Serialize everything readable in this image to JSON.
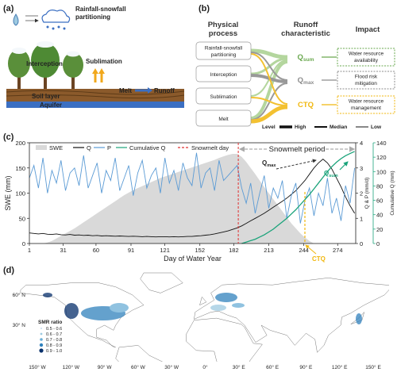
{
  "panel_a": {
    "label": "(a)",
    "partitioning": [
      "Rainfall-snowfall",
      "partitioning"
    ],
    "sublimation": "Sublimation",
    "interception": "Interception",
    "melt": "Melt",
    "runoff": "Runoff",
    "soil": "Soil layer",
    "aquifer": "Aquifer"
  },
  "panel_b": {
    "label": "(b)",
    "headers": [
      [
        "Physical",
        "process"
      ],
      [
        "Runoff",
        "characteristic"
      ],
      [
        "Impact"
      ]
    ],
    "processes": [
      [
        "Rainfall-snowfall",
        "partitioning"
      ],
      [
        "Interception"
      ],
      [
        "Sublimation"
      ],
      [
        "Melt"
      ]
    ],
    "characteristics": [
      {
        "base": "Q",
        "sub": "sum",
        "color": "#6aa84f"
      },
      {
        "base": "Q",
        "sub": "max",
        "color": "#8c8c8c"
      },
      {
        "base": "CTQ",
        "color": "#f1b70e"
      }
    ],
    "impacts": [
      [
        "Water resource",
        "availability"
      ],
      [
        "Flood risk",
        "mitigation"
      ],
      [
        "Water resource",
        "management"
      ]
    ],
    "legend_title": "Level",
    "legend": [
      "High",
      "Median",
      "Low"
    ]
  },
  "panel_c_label": "(c)",
  "chart_data": {
    "type": "line",
    "xlabel": "Day of Water Year",
    "ylabel": "SWE (mm)",
    "y2label": "Q & P (mm/d)",
    "y3label": "Cumulative Q (mm)",
    "x": [
      1,
      5,
      9,
      13,
      17,
      21,
      25,
      29,
      33,
      37,
      41,
      45,
      49,
      53,
      57,
      61,
      65,
      69,
      73,
      77,
      81,
      85,
      89,
      93,
      97,
      101,
      105,
      109,
      113,
      117,
      121,
      125,
      129,
      133,
      137,
      141,
      145,
      149,
      153,
      157,
      161,
      165,
      169,
      173,
      177,
      181,
      185,
      189,
      193,
      197,
      201,
      205,
      209,
      213,
      217,
      221,
      225,
      229,
      233,
      237,
      241,
      245,
      249,
      253,
      257,
      261,
      265,
      269,
      273,
      277,
      281,
      285,
      289
    ],
    "xlim": [
      1,
      290
    ],
    "xticks": [
      1,
      31,
      60,
      91,
      121,
      152,
      182,
      213,
      244,
      274
    ],
    "ylim": [
      0,
      200
    ],
    "yticks": [
      0,
      50,
      100,
      150,
      200
    ],
    "y2lim": [
      0,
      4
    ],
    "y2ticks": [
      0,
      1,
      2,
      3,
      4
    ],
    "y3lim": [
      0,
      140
    ],
    "y3ticks": [
      0,
      20,
      40,
      60,
      80,
      100,
      120,
      140
    ],
    "y3color": "#1aa37a",
    "series": [
      {
        "name": "SWE",
        "style": "area",
        "color": "#d9d9d9",
        "values": [
          0,
          0,
          0,
          0,
          2,
          5,
          10,
          15,
          20,
          25,
          30,
          36,
          42,
          48,
          54,
          60,
          66,
          72,
          78,
          84,
          90,
          96,
          101,
          106,
          110,
          114,
          118,
          122,
          126,
          130,
          133,
          136,
          139,
          142,
          145,
          148,
          151,
          154,
          157,
          160,
          163,
          166,
          170,
          173,
          176,
          178,
          178,
          172,
          162,
          150,
          138,
          125,
          112,
          100,
          88,
          76,
          64,
          52,
          40,
          30,
          20,
          12,
          5,
          0,
          0,
          0,
          0,
          0,
          0,
          0,
          0,
          0,
          0
        ]
      },
      {
        "name": "Q",
        "axis": "y2",
        "color": "#111111",
        "values": [
          0.42,
          0.4,
          0.38,
          0.4,
          0.37,
          0.36,
          0.38,
          0.35,
          0.34,
          0.36,
          0.33,
          0.34,
          0.32,
          0.33,
          0.31,
          0.32,
          0.3,
          0.31,
          0.3,
          0.29,
          0.3,
          0.29,
          0.28,
          0.29,
          0.28,
          0.27,
          0.28,
          0.27,
          0.26,
          0.27,
          0.27,
          0.26,
          0.27,
          0.26,
          0.27,
          0.28,
          0.28,
          0.3,
          0.31,
          0.33,
          0.35,
          0.38,
          0.42,
          0.46,
          0.5,
          0.56,
          0.62,
          0.7,
          0.8,
          0.9,
          1.0,
          1.1,
          1.2,
          1.32,
          1.44,
          1.56,
          1.68,
          1.8,
          1.95,
          2.1,
          2.3,
          2.5,
          2.75,
          3.0,
          3.2,
          3.35,
          3.2,
          2.95,
          2.6,
          2.25,
          1.85,
          1.5,
          1.2
        ]
      },
      {
        "name": "P",
        "axis": "y2",
        "color": "#5b9bd5",
        "values": [
          2.6,
          3.1,
          2.2,
          3.4,
          2.0,
          2.9,
          2.4,
          3.3,
          2.1,
          2.8,
          3.0,
          2.3,
          3.5,
          2.2,
          2.7,
          3.2,
          2.0,
          2.9,
          2.5,
          3.4,
          2.1,
          2.6,
          3.1,
          1.9,
          2.8,
          3.3,
          2.2,
          2.7,
          3.0,
          2.0,
          3.4,
          2.4,
          2.9,
          2.1,
          3.2,
          2.6,
          2.3,
          3.6,
          2.2,
          2.8,
          3.0,
          2.1,
          3.3,
          2.5,
          2.7,
          2.9,
          3.1,
          2.2,
          1.6,
          2.4,
          1.2,
          2.0,
          2.7,
          1.4,
          2.2,
          1.8,
          2.5,
          1.0,
          1.9,
          2.4,
          0.8,
          1.7,
          2.2,
          1.1,
          2.0,
          1.5,
          2.6,
          1.2,
          1.8,
          0.9,
          2.3,
          1.6,
          3.0
        ]
      },
      {
        "name": "Cumulative Q",
        "axis": "y3",
        "color": "#1aa37a",
        "values": [
          null,
          null,
          null,
          null,
          null,
          null,
          null,
          null,
          null,
          null,
          null,
          null,
          null,
          null,
          null,
          null,
          null,
          null,
          null,
          null,
          null,
          null,
          null,
          null,
          null,
          null,
          null,
          null,
          null,
          null,
          null,
          null,
          null,
          null,
          null,
          null,
          null,
          null,
          null,
          null,
          null,
          null,
          null,
          null,
          null,
          null,
          null,
          0,
          2,
          4,
          6,
          9,
          12,
          16,
          20,
          25,
          30,
          35,
          41,
          47,
          54,
          61,
          68,
          76,
          84,
          92,
          100,
          107,
          113,
          118,
          122,
          125,
          128
        ]
      }
    ],
    "marker": {
      "name": "Snowmelt day",
      "x": 186,
      "color": "#e03030"
    },
    "snowmelt_period": "Snowmelt period",
    "qmax": {
      "base": "Q",
      "sub": "max"
    },
    "qsum": {
      "base": "Q",
      "sub": "sum",
      "color": "#1aa37a"
    },
    "ctq": {
      "base": "CTQ",
      "x": 245,
      "color": "#f1b70e"
    }
  },
  "panel_d": {
    "label": "(d)",
    "legend_title": "SMR ratio",
    "legend": [
      "0.5 - 0.6",
      "0.6 - 0.7",
      "0.7 - 0.8",
      "0.8 - 0.9",
      "0.9 - 1.0"
    ],
    "legend_colors": [
      "#c6dbef",
      "#9ecae1",
      "#6baed6",
      "#3182bd",
      "#08306b"
    ],
    "lon_labels": [
      "150° W",
      "120° W",
      "90° W",
      "60° W",
      "30° W",
      "0°",
      "30° E",
      "60° E",
      "90° E",
      "120° E",
      "150° E"
    ],
    "lat_labels": [
      "60° N",
      "30° N"
    ]
  }
}
